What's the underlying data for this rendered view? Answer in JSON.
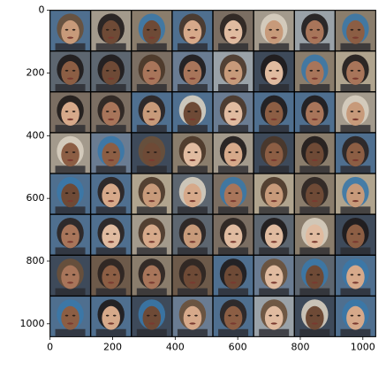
{
  "chart_data": {
    "type": "image",
    "xlim": [
      -0.5,
      1041.5
    ],
    "ylim": [
      1041.5,
      -0.5
    ],
    "xticks": [
      0,
      200,
      400,
      600,
      800,
      1000
    ],
    "yticks": [
      0,
      200,
      400,
      600,
      800,
      1000
    ]
  }
}
